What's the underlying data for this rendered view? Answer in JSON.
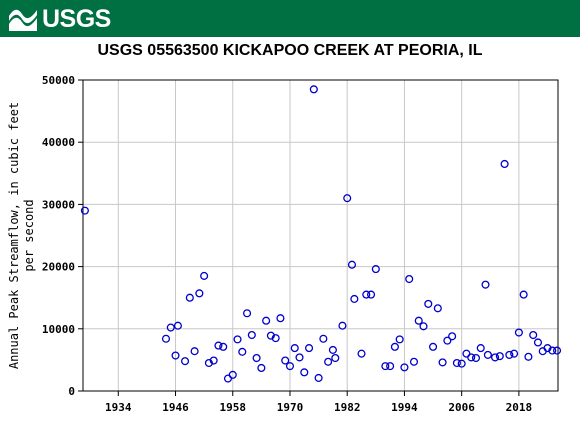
{
  "banner": {
    "logo_text": "USGS",
    "color": "#006f41"
  },
  "chart_data": {
    "type": "scatter",
    "title": "USGS 05563500 KICKAPOO CREEK AT PEORIA, IL",
    "ylabel_lines": [
      "Annual Peak Streamflow, in cubic feet",
      "per second"
    ],
    "xlabel": "",
    "xlim": [
      1926.6,
      2026.2
    ],
    "ylim": [
      0,
      50000
    ],
    "xticks": [
      1934,
      1946,
      1958,
      1970,
      1982,
      1994,
      2006,
      2018
    ],
    "yticks": [
      0,
      10000,
      20000,
      30000,
      40000,
      50000
    ],
    "grid": true,
    "marker_color": "#0000cc",
    "points": [
      {
        "x": 1927,
        "y": 29000
      },
      {
        "x": 1944,
        "y": 8400
      },
      {
        "x": 1945,
        "y": 10200
      },
      {
        "x": 1946,
        "y": 5700
      },
      {
        "x": 1946.5,
        "y": 10500
      },
      {
        "x": 1948,
        "y": 4800
      },
      {
        "x": 1949,
        "y": 15000
      },
      {
        "x": 1950,
        "y": 6400
      },
      {
        "x": 1951,
        "y": 15700
      },
      {
        "x": 1952,
        "y": 18500
      },
      {
        "x": 1953,
        "y": 4500
      },
      {
        "x": 1954,
        "y": 4900
      },
      {
        "x": 1955,
        "y": 7300
      },
      {
        "x": 1956,
        "y": 7100
      },
      {
        "x": 1957,
        "y": 2000
      },
      {
        "x": 1958,
        "y": 2600
      },
      {
        "x": 1959,
        "y": 8300
      },
      {
        "x": 1960,
        "y": 6300
      },
      {
        "x": 1961,
        "y": 12500
      },
      {
        "x": 1962,
        "y": 9000
      },
      {
        "x": 1963,
        "y": 5300
      },
      {
        "x": 1964,
        "y": 3700
      },
      {
        "x": 1965,
        "y": 11300
      },
      {
        "x": 1966,
        "y": 8900
      },
      {
        "x": 1967,
        "y": 8500
      },
      {
        "x": 1968,
        "y": 11700
      },
      {
        "x": 1969,
        "y": 4900
      },
      {
        "x": 1970,
        "y": 4000
      },
      {
        "x": 1971,
        "y": 6900
      },
      {
        "x": 1972,
        "y": 5400
      },
      {
        "x": 1973,
        "y": 3000
      },
      {
        "x": 1974,
        "y": 6900
      },
      {
        "x": 1975,
        "y": 48500
      },
      {
        "x": 1976,
        "y": 2100
      },
      {
        "x": 1977,
        "y": 8400
      },
      {
        "x": 1978,
        "y": 4700
      },
      {
        "x": 1979,
        "y": 6600
      },
      {
        "x": 1979.5,
        "y": 5300
      },
      {
        "x": 1981,
        "y": 10500
      },
      {
        "x": 1982,
        "y": 31000
      },
      {
        "x": 1983,
        "y": 20300
      },
      {
        "x": 1983.5,
        "y": 14800
      },
      {
        "x": 1985,
        "y": 6000
      },
      {
        "x": 1986,
        "y": 15500
      },
      {
        "x": 1987,
        "y": 15500
      },
      {
        "x": 1988,
        "y": 19600
      },
      {
        "x": 1990,
        "y": 4000
      },
      {
        "x": 1991,
        "y": 4000
      },
      {
        "x": 1992,
        "y": 7100
      },
      {
        "x": 1993,
        "y": 8300
      },
      {
        "x": 1994,
        "y": 3800
      },
      {
        "x": 1995,
        "y": 18000
      },
      {
        "x": 1996,
        "y": 4700
      },
      {
        "x": 1997,
        "y": 11300
      },
      {
        "x": 1998,
        "y": 10400
      },
      {
        "x": 1999,
        "y": 14000
      },
      {
        "x": 2000,
        "y": 7100
      },
      {
        "x": 2001,
        "y": 13300
      },
      {
        "x": 2002,
        "y": 4600
      },
      {
        "x": 2003,
        "y": 8100
      },
      {
        "x": 2004,
        "y": 8800
      },
      {
        "x": 2005,
        "y": 4500
      },
      {
        "x": 2006,
        "y": 4400
      },
      {
        "x": 2007,
        "y": 6000
      },
      {
        "x": 2008,
        "y": 5400
      },
      {
        "x": 2009,
        "y": 5300
      },
      {
        "x": 2010,
        "y": 6900
      },
      {
        "x": 2011,
        "y": 17100
      },
      {
        "x": 2011.5,
        "y": 5800
      },
      {
        "x": 2013,
        "y": 5400
      },
      {
        "x": 2014,
        "y": 5600
      },
      {
        "x": 2015,
        "y": 36500
      },
      {
        "x": 2016,
        "y": 5800
      },
      {
        "x": 2017,
        "y": 6000
      },
      {
        "x": 2018,
        "y": 9400
      },
      {
        "x": 2019,
        "y": 15500
      },
      {
        "x": 2020,
        "y": 5500
      },
      {
        "x": 2021,
        "y": 9000
      },
      {
        "x": 2022,
        "y": 7800
      },
      {
        "x": 2023,
        "y": 6400
      },
      {
        "x": 2024,
        "y": 6900
      },
      {
        "x": 2025,
        "y": 6500
      },
      {
        "x": 2026,
        "y": 6500
      }
    ]
  }
}
